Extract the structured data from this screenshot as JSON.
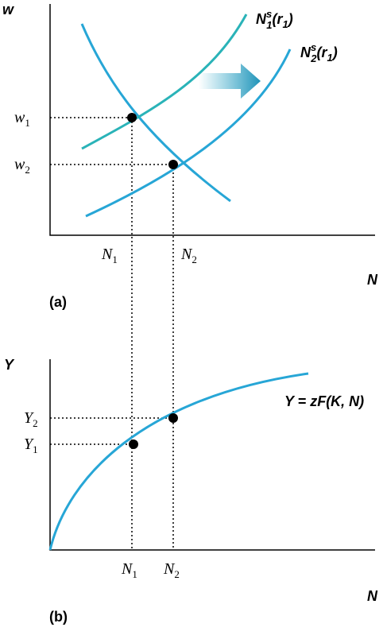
{
  "panel_a": {
    "label": "(a)",
    "y_axis": "w",
    "x_axis": "N",
    "supply_1": {
      "base": "N",
      "sub": "1",
      "sup": "s",
      "arg": "(r",
      "argsub": "1",
      "close": ")"
    },
    "supply_2": {
      "base": "N",
      "sub": "2",
      "sup": "s",
      "arg": "(r",
      "argsub": "1",
      "close": ")"
    },
    "y_ticks": [
      {
        "base": "w",
        "sub": "1"
      },
      {
        "base": "w",
        "sub": "2"
      }
    ],
    "x_ticks": [
      {
        "base": "N",
        "sub": "1"
      },
      {
        "base": "N",
        "sub": "2"
      }
    ]
  },
  "panel_b": {
    "label": "(b)",
    "y_axis": "Y",
    "x_axis": "N",
    "curve": "Y = zF(K, N)",
    "y_ticks": [
      {
        "base": "Y",
        "sub": "2"
      },
      {
        "base": "Y",
        "sub": "1"
      }
    ],
    "x_ticks": [
      {
        "base": "N",
        "sub": "1"
      },
      {
        "base": "N",
        "sub": "2"
      }
    ]
  }
}
